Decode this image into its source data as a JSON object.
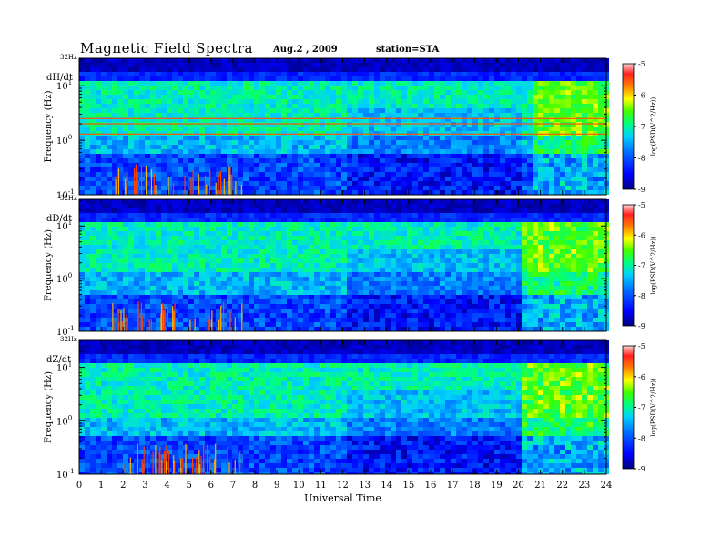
{
  "header": {
    "title": "Magnetic  Field  Spectra",
    "date": "Aug.2  , 2009",
    "station": "station=STA"
  },
  "chart_data": [
    {
      "type": "heatmap",
      "panel_label": "dH/dt",
      "ylabel": "Frequency  (Hz)",
      "xlabel": "Universal  Time",
      "x_ticks": [
        "0",
        "1",
        "2",
        "3",
        "4",
        "5",
        "6",
        "7",
        "8",
        "9",
        "10",
        "11",
        "12",
        "13",
        "14",
        "15",
        "16",
        "17",
        "18",
        "19",
        "20",
        "21",
        "22",
        "23",
        "24"
      ],
      "xlim": [
        0,
        24
      ],
      "ylim": [
        0.1,
        32
      ],
      "yscale": "log",
      "y_top_label": "32Hz",
      "y_ticks": [
        {
          "base": "10",
          "exp": "-1",
          "value": 0.1
        },
        {
          "base": "10",
          "exp": "0",
          "value": 1
        },
        {
          "base": "10",
          "exp": "1",
          "value": 10
        }
      ],
      "colorbar": {
        "label": "log(PSD(V^2/Hz))",
        "ticks": [
          "-5",
          "-6",
          "-7",
          "-8",
          "-9"
        ],
        "range": [
          -9,
          -5
        ]
      },
      "features": {
        "lines_hz": [
          1.3,
          2.0,
          2.5
        ],
        "activity_hours": [
          20.5,
          24
        ],
        "low_bursts_hours": [
          1.5,
          7.5
        ]
      }
    },
    {
      "type": "heatmap",
      "panel_label": "dD/dt",
      "ylabel": "Frequency  (Hz)",
      "xlabel": "Universal  Time",
      "x_ticks": [
        "0",
        "1",
        "2",
        "3",
        "4",
        "5",
        "6",
        "7",
        "8",
        "9",
        "10",
        "11",
        "12",
        "13",
        "14",
        "15",
        "16",
        "17",
        "18",
        "19",
        "20",
        "21",
        "22",
        "23",
        "24"
      ],
      "xlim": [
        0,
        24
      ],
      "ylim": [
        0.1,
        32
      ],
      "yscale": "log",
      "y_top_label": "32Hz",
      "y_ticks": [
        {
          "base": "10",
          "exp": "-1",
          "value": 0.1
        },
        {
          "base": "10",
          "exp": "0",
          "value": 1
        },
        {
          "base": "10",
          "exp": "1",
          "value": 10
        }
      ],
      "colorbar": {
        "label": "log(PSD(V^2/Hz))",
        "ticks": [
          "-5",
          "-6",
          "-7",
          "-8",
          "-9"
        ],
        "range": [
          -9,
          -5
        ]
      },
      "features": {
        "lines_hz": [],
        "activity_hours": [
          20.0,
          24
        ],
        "low_bursts_hours": [
          1.5,
          7.5
        ]
      }
    },
    {
      "type": "heatmap",
      "panel_label": "dZ/dt",
      "ylabel": "Frequency  (Hz)",
      "xlabel": "Universal  Time",
      "x_ticks": [
        "0",
        "1",
        "2",
        "3",
        "4",
        "5",
        "6",
        "7",
        "8",
        "9",
        "10",
        "11",
        "12",
        "13",
        "14",
        "15",
        "16",
        "17",
        "18",
        "19",
        "20",
        "21",
        "22",
        "23",
        "24"
      ],
      "xlim": [
        0,
        24
      ],
      "ylim": [
        0.1,
        32
      ],
      "yscale": "log",
      "y_top_label": "32Hz",
      "y_ticks": [
        {
          "base": "10",
          "exp": "-1",
          "value": 0.1
        },
        {
          "base": "10",
          "exp": "0",
          "value": 1
        },
        {
          "base": "10",
          "exp": "1",
          "value": 10
        }
      ],
      "colorbar": {
        "label": "log(PSD(V^2/Hz))",
        "ticks": [
          "-5",
          "-6",
          "-7",
          "-8",
          "-9"
        ],
        "range": [
          -9,
          -5
        ]
      },
      "features": {
        "lines_hz": [],
        "activity_hours": [
          20.0,
          24
        ],
        "low_bursts_hours": [
          2.0,
          7.5
        ]
      }
    }
  ]
}
